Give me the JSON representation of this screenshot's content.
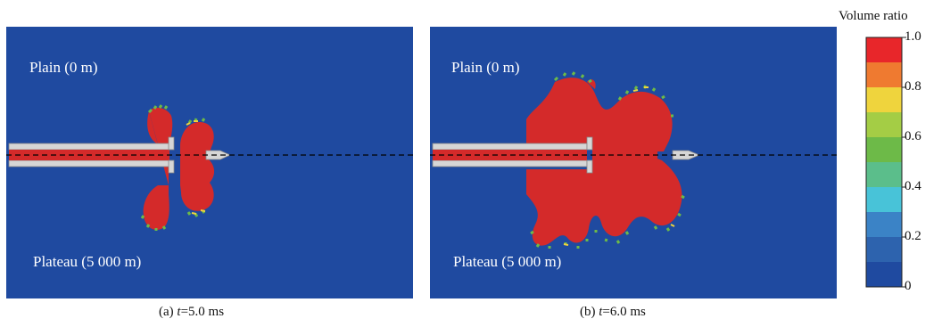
{
  "panels": [
    {
      "plain_label": "Plain (0 m)",
      "plateau_label": "Plateau (5 000 m)",
      "caption_prefix": "(a) ",
      "caption_var": "t",
      "caption_value": "=5.0 ms"
    },
    {
      "plain_label": "Plain (0 m)",
      "plateau_label": "Plateau (5 000 m)",
      "caption_prefix": "(b) ",
      "caption_var": "t",
      "caption_value": "=6.0 ms"
    }
  ],
  "legend": {
    "title": "Volume ratio",
    "ticks": [
      "1.0",
      "0.8",
      "0.6",
      "0.4",
      "0.2",
      "0"
    ],
    "colors": [
      "#e8262a",
      "#ef7a30",
      "#efd43d",
      "#a4cd45",
      "#6dba48",
      "#5bbe8b",
      "#48c3d8",
      "#3b83c6",
      "#2d63ae",
      "#1f4aa0"
    ]
  },
  "colors": {
    "background_field": "#1f4aa0",
    "fluid": "#d42a2a",
    "barrel": "#d6d6d6"
  }
}
